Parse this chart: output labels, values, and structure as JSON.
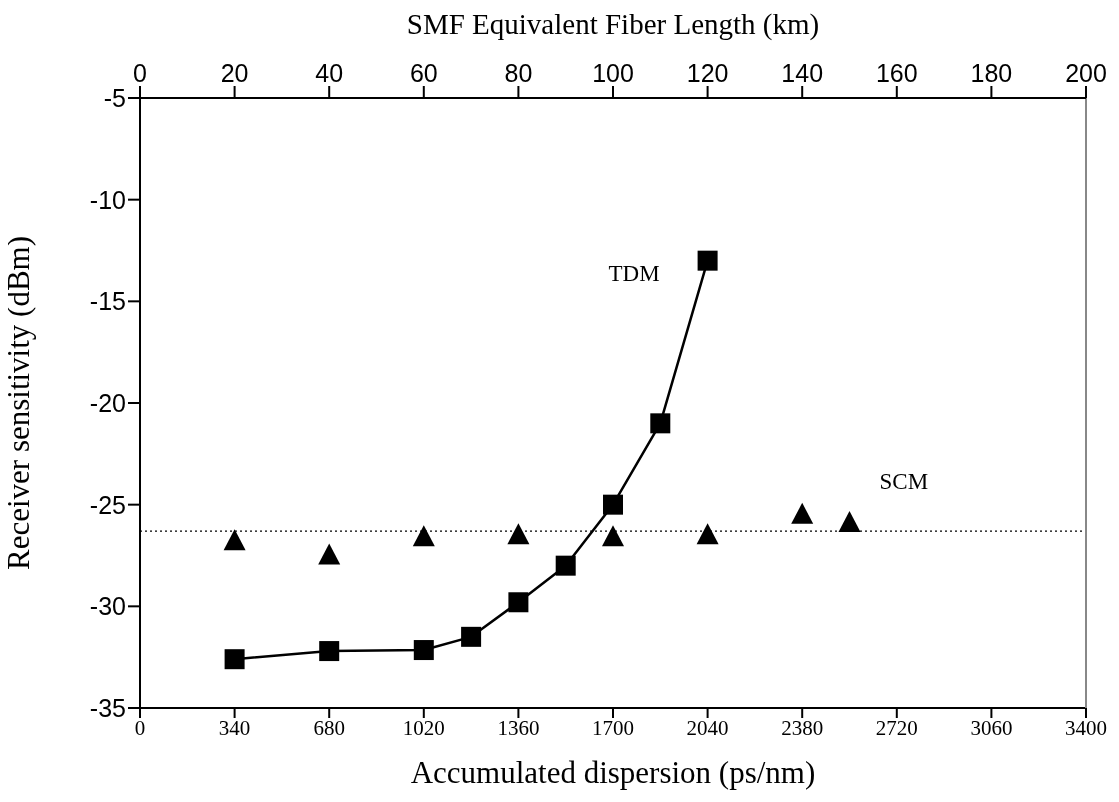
{
  "chart_data": {
    "type": "scatter",
    "xlabel": "Accumulated dispersion (ps/nm)",
    "x2label": "SMF Equivalent Fiber Length (km)",
    "ylabel": "Receiver sensitivity (dBm)",
    "xlim": [
      0,
      3400
    ],
    "xticks": [
      0,
      340,
      680,
      1020,
      1360,
      1700,
      2040,
      2380,
      2720,
      3060,
      3400
    ],
    "x2lim": [
      0,
      200
    ],
    "x2ticks": [
      0,
      20,
      40,
      60,
      80,
      100,
      120,
      140,
      160,
      180,
      200
    ],
    "ylim": [
      -35,
      -5
    ],
    "yticks": [
      -35,
      -30,
      -25,
      -20,
      -15,
      -10,
      -5
    ],
    "series": [
      {
        "name": "TDM",
        "type": "line",
        "marker": "square",
        "line_style": "solid",
        "color": "#000000",
        "x": [
          340,
          680,
          1020,
          1190,
          1360,
          1530,
          1700,
          1870,
          2040
        ],
        "values": [
          -32.6,
          -32.2,
          -32.15,
          -31.5,
          -29.8,
          -28,
          -25,
          -21,
          -13
        ]
      },
      {
        "name": "SCM",
        "marker": "triangle",
        "color": "#000000",
        "x": [
          340,
          680,
          1020,
          1360,
          1700,
          2040,
          2380,
          2550
        ],
        "values": [
          -26.8,
          -27.5,
          -26.6,
          -26.5,
          -26.6,
          -26.5,
          -25.5,
          -25.9
        ]
      }
    ],
    "ref_lines": [
      {
        "axis": "y",
        "value": -26.3,
        "line_style": "dotted",
        "color": "#000000"
      }
    ]
  }
}
